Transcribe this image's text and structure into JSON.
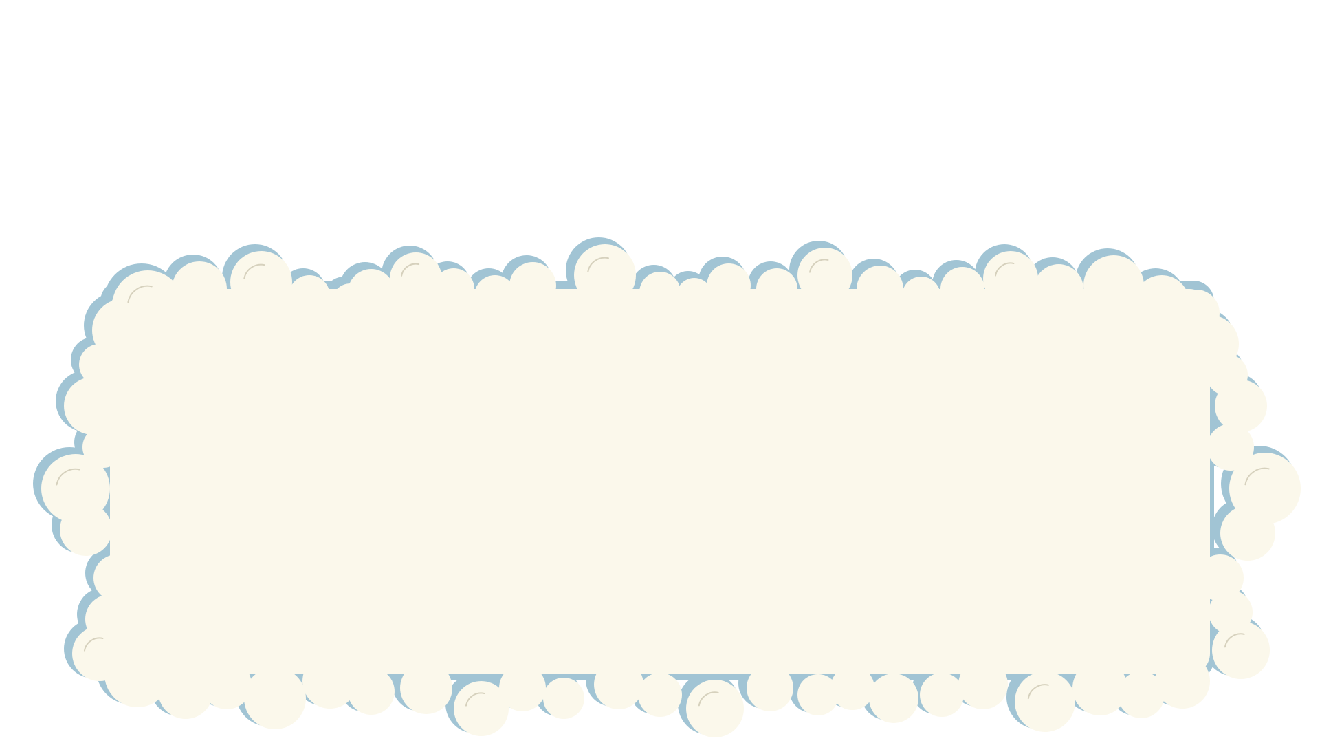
{
  "scene": {
    "background_color": "#ffffff"
  },
  "cloud_panel": {
    "fill_color": "#fbf8eb",
    "shadow_color": "#a1c4d4",
    "crease_color": "#d6d1bd",
    "icon": "cloud-panel-icon"
  }
}
